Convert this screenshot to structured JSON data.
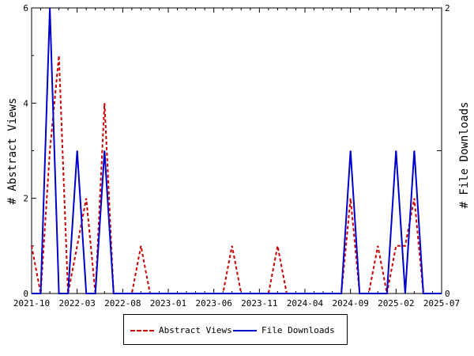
{
  "chart_data": {
    "type": "line",
    "x_tick_labels": [
      "2021-10",
      "2022-03",
      "2022-08",
      "2023-01",
      "2023-06",
      "2023-11",
      "2024-04",
      "2024-09",
      "2025-02",
      "2025-07"
    ],
    "x": [
      "2021-10",
      "2021-11",
      "2021-12",
      "2022-01",
      "2022-02",
      "2022-03",
      "2022-04",
      "2022-05",
      "2022-06",
      "2022-07",
      "2022-08",
      "2022-09",
      "2022-10",
      "2022-11",
      "2022-12",
      "2023-01",
      "2023-02",
      "2023-03",
      "2023-04",
      "2023-05",
      "2023-06",
      "2023-07",
      "2023-08",
      "2023-09",
      "2023-10",
      "2023-11",
      "2023-12",
      "2024-01",
      "2024-02",
      "2024-03",
      "2024-04",
      "2024-05",
      "2024-06",
      "2024-07",
      "2024-08",
      "2024-09",
      "2024-10",
      "2024-11",
      "2024-12",
      "2025-01",
      "2025-02",
      "2025-03",
      "2025-04",
      "2025-05",
      "2025-06",
      "2025-07"
    ],
    "series": [
      {
        "name": "Abstract Views",
        "axis": "left",
        "color": "#cc0000",
        "style": "dashed",
        "values": [
          1,
          0,
          3,
          5,
          0,
          1,
          2,
          0,
          4,
          0,
          0,
          0,
          1,
          0,
          0,
          0,
          0,
          0,
          0,
          0,
          0,
          0,
          1,
          0,
          0,
          0,
          0,
          1,
          0,
          0,
          0,
          0,
          0,
          0,
          0,
          2,
          0,
          0,
          1,
          0,
          1,
          1,
          2,
          0,
          0,
          0
        ]
      },
      {
        "name": "File Downloads",
        "axis": "right",
        "color": "#0000cc",
        "style": "solid",
        "values": [
          0,
          0,
          2,
          0,
          0,
          1,
          0,
          0,
          1,
          0,
          0,
          0,
          0,
          0,
          0,
          0,
          0,
          0,
          0,
          0,
          0,
          0,
          0,
          0,
          0,
          0,
          0,
          0,
          0,
          0,
          0,
          0,
          0,
          0,
          0,
          1,
          0,
          0,
          0,
          0,
          1,
          0,
          1,
          0,
          0,
          0
        ]
      }
    ],
    "ylabel_left": "# Abstract Views",
    "ylabel_right": "# File Downloads",
    "ylim_left": [
      0,
      6
    ],
    "yticks_left": [
      "0",
      "2",
      "4",
      "6"
    ],
    "ylim_right": [
      0,
      2
    ],
    "yticks_right": [
      "0",
      "1",
      "2"
    ],
    "yticks_right_labeled": [
      "0",
      "2"
    ],
    "grid": false,
    "legend_position": "bottom-center"
  },
  "legend": {
    "abstract_label": "Abstract Views",
    "downloads_label": "File Downloads"
  }
}
